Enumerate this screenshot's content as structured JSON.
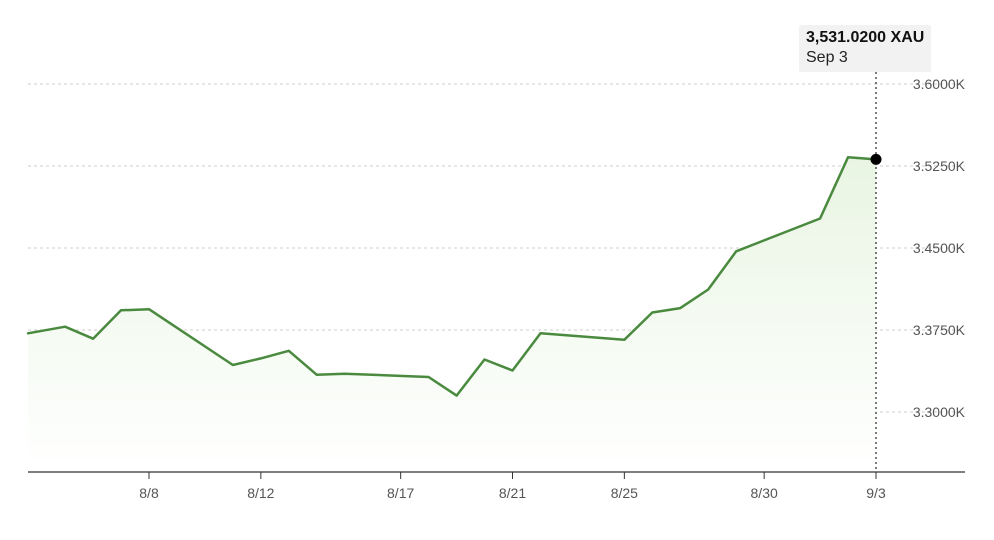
{
  "chart_data": {
    "type": "area",
    "title": "",
    "xlabel": "",
    "ylabel": "",
    "x_tick_labels": [
      "8/8",
      "8/12",
      "8/17",
      "8/21",
      "8/25",
      "8/30",
      "9/3"
    ],
    "y_tick_labels": [
      "3.3000K",
      "3.3750K",
      "3.4500K",
      "3.5250K",
      "3.6000K"
    ],
    "y_ticks": [
      3300,
      3375,
      3450,
      3525,
      3600
    ],
    "ylim": [
      3245,
      3620
    ],
    "grid": "horizontal-dashed",
    "series": [
      {
        "color": "#4a8a3f",
        "dates": [
          "2025-08-04",
          "2025-08-05",
          "2025-08-06",
          "2025-08-07",
          "2025-08-08",
          "2025-08-11",
          "2025-08-12",
          "2025-08-13",
          "2025-08-14",
          "2025-08-15",
          "2025-08-18",
          "2025-08-19",
          "2025-08-20",
          "2025-08-21",
          "2025-08-22",
          "2025-08-25",
          "2025-08-26",
          "2025-08-27",
          "2025-08-28",
          "2025-08-29",
          "2025-09-01",
          "2025-09-02",
          "2025-09-03"
        ],
        "values": [
          3372,
          3378,
          3367,
          3393,
          3394,
          3343,
          3349,
          3356,
          3334,
          3335,
          3332,
          3315,
          3348,
          3338,
          3372,
          3366,
          3391,
          3395,
          3412,
          3447,
          3477,
          3533,
          3531.02
        ]
      }
    ],
    "highlight": {
      "value_label": "3,531.0200 XAU",
      "date_label": "Sep 3"
    }
  }
}
